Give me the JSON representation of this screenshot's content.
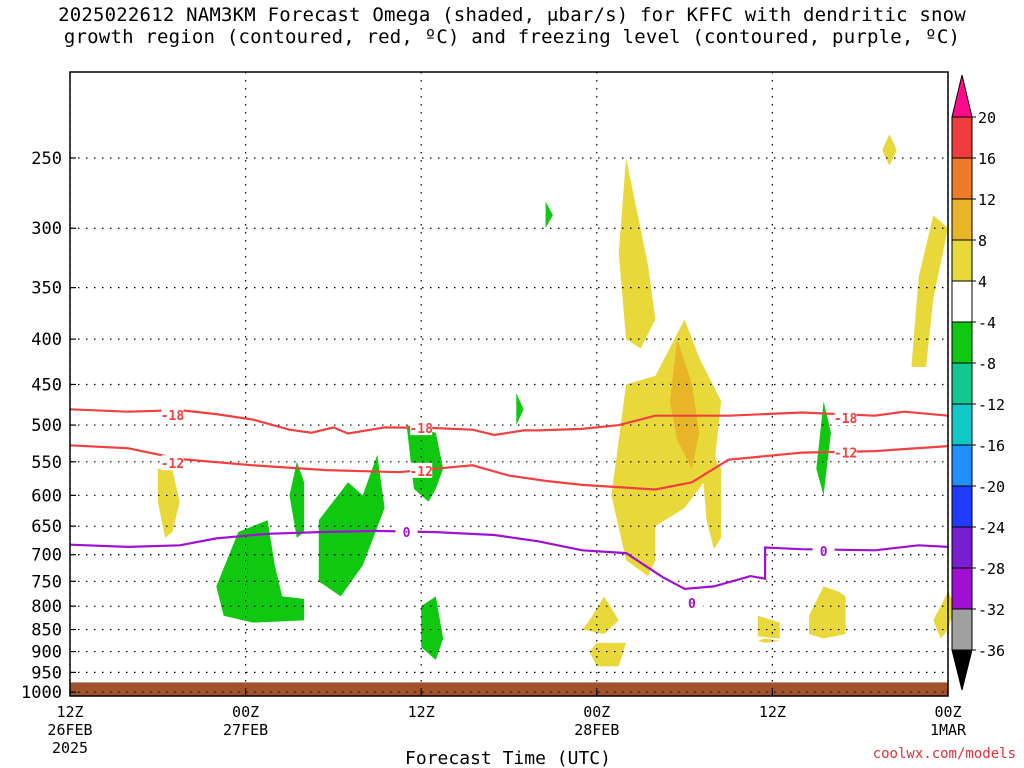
{
  "title_line1": "2025022612 NAM3KM Forecast Omega (shaded, μbar/s) for KFFC with dendritic snow",
  "title_line2": "growth region (contoured, red, ºC) and freezing level (contoured, purple, ºC)",
  "credit": "coolwx.com/models",
  "chart_data": {
    "type": "heatmap",
    "xlabel": "Forecast Time (UTC)",
    "ylabel": "",
    "y_scale": "log-pressure (inverted)",
    "ylim": [
      1010,
      200
    ],
    "y_ticks": [
      250,
      300,
      350,
      400,
      450,
      500,
      550,
      600,
      650,
      700,
      750,
      800,
      850,
      900,
      950,
      1000
    ],
    "x_ticks": [
      {
        "line1": "12Z",
        "line2": "26FEB",
        "line3": "2025"
      },
      {
        "line1": "00Z",
        "line2": "27FEB",
        "line3": ""
      },
      {
        "line1": "12Z",
        "line2": "",
        "line3": ""
      },
      {
        "line1": "00Z",
        "line2": "28FEB",
        "line3": ""
      },
      {
        "line1": "12Z",
        "line2": "",
        "line3": ""
      },
      {
        "line1": "00Z",
        "line2": "1MAR",
        "line3": ""
      }
    ],
    "xlim_hours": [
      0,
      60
    ],
    "grid": true,
    "colorbar": {
      "labels": [
        "20",
        "16",
        "12",
        "8",
        "4",
        "-4",
        "-8",
        "-12",
        "-16",
        "-20",
        "-24",
        "-28",
        "-32",
        "-36"
      ],
      "colors": [
        "#ff0a8a",
        "#f03c3c",
        "#f07a28",
        "#e8b428",
        "#e8d83a",
        "#ffffff",
        "#10c810",
        "#10c890",
        "#10c8c8",
        "#1e90ff",
        "#1e3cff",
        "#7a1ed2",
        "#a010d2",
        "#a0a0a0",
        "#000000"
      ]
    },
    "ground_color": "#a0522d",
    "contours": [
      {
        "label": "-18",
        "color": "#f04040",
        "type": "dendritic",
        "points": [
          [
            0,
            480
          ],
          [
            8,
            483
          ],
          [
            15,
            481
          ],
          [
            20,
            486
          ],
          [
            25,
            493
          ],
          [
            30,
            506
          ],
          [
            33,
            510
          ],
          [
            36,
            503
          ],
          [
            38,
            511
          ],
          [
            43,
            503
          ],
          [
            50,
            504
          ],
          [
            55,
            506
          ],
          [
            58,
            513
          ],
          [
            60,
            510
          ],
          [
            62,
            507
          ],
          [
            64,
            507
          ],
          [
            70,
            505
          ],
          [
            75,
            500
          ],
          [
            80,
            488
          ],
          [
            90,
            488
          ],
          [
            100,
            484
          ],
          [
            110,
            488
          ],
          [
            114,
            483
          ],
          [
            120,
            488
          ]
        ],
        "label_at": [
          [
            14,
            487
          ],
          [
            48,
            504
          ],
          [
            106,
            491
          ]
        ]
      },
      {
        "label": "-12",
        "color": "#f04040",
        "type": "dendritic",
        "points": [
          [
            0,
            527
          ],
          [
            8,
            531
          ],
          [
            15,
            546
          ],
          [
            25,
            555
          ],
          [
            35,
            562
          ],
          [
            45,
            565
          ],
          [
            50,
            560
          ],
          [
            55,
            555
          ],
          [
            60,
            570
          ],
          [
            65,
            578
          ],
          [
            70,
            584
          ],
          [
            80,
            591
          ],
          [
            85,
            580
          ],
          [
            90,
            547
          ],
          [
            100,
            537
          ],
          [
            110,
            535
          ],
          [
            120,
            528
          ]
        ],
        "label_at": [
          [
            14,
            552
          ],
          [
            48,
            563
          ],
          [
            106,
            537
          ]
        ]
      },
      {
        "label": "0",
        "color": "#a010d2",
        "type": "freezing_level",
        "points": [
          [
            0,
            682
          ],
          [
            8,
            686
          ],
          [
            15,
            683
          ],
          [
            20,
            671
          ],
          [
            27,
            663
          ],
          [
            34,
            660
          ],
          [
            42,
            658
          ],
          [
            50,
            660
          ],
          [
            58,
            665
          ],
          [
            64,
            676
          ],
          [
            70,
            692
          ],
          [
            76,
            697
          ],
          [
            81,
            742
          ],
          [
            84,
            765
          ],
          [
            88,
            760
          ],
          [
            93,
            740
          ],
          [
            95,
            745
          ],
          [
            95,
            687
          ],
          [
            100,
            690
          ],
          [
            110,
            692
          ],
          [
            116,
            683
          ],
          [
            120,
            686
          ]
        ],
        "label_at": [
          [
            46,
            660
          ],
          [
            103,
            693
          ],
          [
            85,
            793
          ]
        ]
      }
    ],
    "shaded_regions": [
      {
        "value": 8,
        "color": "#e8d83a",
        "points": [
          [
            12,
            560
          ],
          [
            14,
            562
          ],
          [
            15,
            610
          ],
          [
            14,
            660
          ],
          [
            13,
            670
          ],
          [
            12,
            610
          ]
        ]
      },
      {
        "value": 8,
        "color": "#e8d83a",
        "points": [
          [
            73,
            780
          ],
          [
            75,
            830
          ],
          [
            73,
            860
          ],
          [
            70,
            850
          ],
          [
            71,
            830
          ]
        ]
      },
      {
        "value": 8,
        "color": "#e8d83a",
        "points": [
          [
            72,
            880
          ],
          [
            76,
            880
          ],
          [
            75,
            935
          ],
          [
            72,
            935
          ],
          [
            71,
            900
          ]
        ]
      },
      {
        "value": 8,
        "color": "#e8d83a",
        "points": [
          [
            76,
            250
          ],
          [
            79,
            330
          ],
          [
            80,
            380
          ],
          [
            78,
            410
          ],
          [
            76,
            400
          ],
          [
            75,
            320
          ]
        ]
      },
      {
        "value": 8,
        "color": "#e8d83a",
        "points": [
          [
            76,
            450
          ],
          [
            80,
            440
          ],
          [
            84,
            380
          ],
          [
            86,
            420
          ],
          [
            89,
            470
          ],
          [
            88,
            560
          ],
          [
            84,
            620
          ],
          [
            80,
            650
          ],
          [
            80,
            710
          ],
          [
            79,
            740
          ],
          [
            76,
            710
          ],
          [
            74,
            600
          ],
          [
            75,
            520
          ]
        ]
      },
      {
        "value": 8,
        "color": "#e8d83a",
        "points": [
          [
            86,
            510
          ],
          [
            89,
            560
          ],
          [
            89,
            670
          ],
          [
            88,
            690
          ],
          [
            87,
            640
          ]
        ]
      },
      {
        "value": 12,
        "color": "#e8b428",
        "points": [
          [
            83,
            400
          ],
          [
            85,
            450
          ],
          [
            86,
            510
          ],
          [
            85,
            560
          ],
          [
            83,
            520
          ],
          [
            82,
            470
          ]
        ]
      },
      {
        "value": 8,
        "color": "#e8d83a",
        "points": [
          [
            94,
            820
          ],
          [
            97,
            835
          ],
          [
            97,
            870
          ],
          [
            94,
            865
          ]
        ]
      },
      {
        "value": 8,
        "color": "#e8d83a",
        "points": [
          [
            95,
            870
          ],
          [
            97,
            875
          ],
          [
            95,
            880
          ],
          [
            94,
            875
          ]
        ]
      },
      {
        "value": 8,
        "color": "#e8d83a",
        "points": [
          [
            103,
            760
          ],
          [
            105,
            770
          ],
          [
            106,
            780
          ],
          [
            106,
            860
          ],
          [
            103,
            870
          ],
          [
            101,
            860
          ],
          [
            101,
            820
          ]
        ]
      },
      {
        "value": 8,
        "color": "#e8d83a",
        "points": [
          [
            112,
            235
          ],
          [
            113,
            245
          ],
          [
            112,
            255
          ],
          [
            111,
            245
          ]
        ]
      },
      {
        "value": 8,
        "color": "#e8d83a",
        "points": [
          [
            118,
            290
          ],
          [
            120,
            300
          ],
          [
            118,
            360
          ],
          [
            117,
            430
          ],
          [
            115,
            430
          ],
          [
            116,
            340
          ]
        ]
      },
      {
        "value": 8,
        "color": "#e8d83a",
        "points": [
          [
            120,
            770
          ],
          [
            121,
            800
          ],
          [
            120,
            850
          ],
          [
            119,
            870
          ],
          [
            118,
            830
          ]
        ]
      },
      {
        "value": -8,
        "color": "#10c810",
        "points": [
          [
            23,
            660
          ],
          [
            27,
            640
          ],
          [
            28,
            720
          ],
          [
            29,
            780
          ],
          [
            32,
            785
          ],
          [
            32,
            830
          ],
          [
            25,
            835
          ],
          [
            21,
            820
          ],
          [
            20,
            760
          ]
        ]
      },
      {
        "value": -8,
        "color": "#10c810",
        "points": [
          [
            31,
            550
          ],
          [
            32,
            580
          ],
          [
            32,
            660
          ],
          [
            31,
            670
          ],
          [
            30,
            600
          ]
        ]
      },
      {
        "value": -8,
        "color": "#10c810",
        "points": [
          [
            34,
            640
          ],
          [
            38,
            580
          ],
          [
            40,
            600
          ],
          [
            42,
            540
          ],
          [
            43,
            620
          ],
          [
            40,
            720
          ],
          [
            37,
            780
          ],
          [
            34,
            750
          ]
        ]
      },
      {
        "value": -8,
        "color": "#10c810",
        "points": [
          [
            46,
            500
          ],
          [
            50,
            510
          ],
          [
            51,
            560
          ],
          [
            50,
            590
          ],
          [
            49,
            610
          ],
          [
            47,
            590
          ]
        ]
      },
      {
        "value": -8,
        "color": "#10c810",
        "points": [
          [
            48,
            800
          ],
          [
            50,
            780
          ],
          [
            51,
            870
          ],
          [
            50,
            920
          ],
          [
            48,
            890
          ]
        ]
      },
      {
        "value": -8,
        "color": "#10c810",
        "points": [
          [
            61,
            460
          ],
          [
            62,
            480
          ],
          [
            61,
            500
          ]
        ]
      },
      {
        "value": -8,
        "color": "#10c810",
        "points": [
          [
            65,
            280
          ],
          [
            66,
            290
          ],
          [
            65,
            300
          ]
        ]
      },
      {
        "value": -8,
        "color": "#10c810",
        "points": [
          [
            103,
            470
          ],
          [
            104,
            510
          ],
          [
            103,
            600
          ],
          [
            102,
            560
          ]
        ]
      }
    ]
  }
}
